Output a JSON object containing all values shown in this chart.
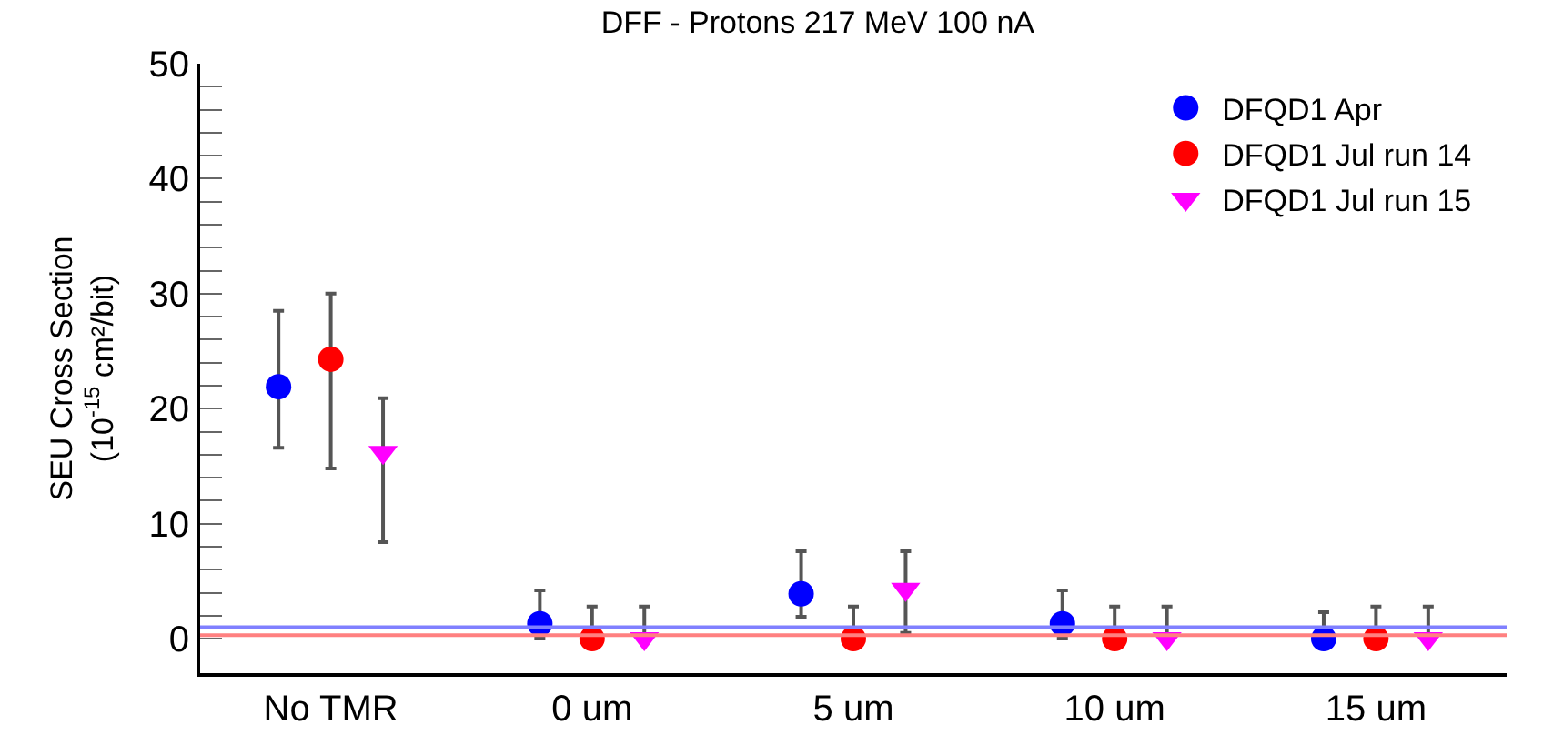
{
  "chart_data": {
    "type": "scatter",
    "title": "DFF - Protons 217 MeV 100 nA",
    "ylabel": "SEU Cross Section\n(10$^{-15}$ cm²/bit)",
    "categories": [
      "No TMR",
      "0 um",
      "5 um",
      "10 um",
      "15 um"
    ],
    "series": [
      {
        "name": "DFQD1 Apr",
        "color": "#0000ff",
        "marker": "circle",
        "values": [
          21.9,
          1.3,
          3.9,
          1.3,
          0
        ],
        "errors": [
          [
            16.6,
            28.5
          ],
          [
            0,
            4.2
          ],
          [
            1.9,
            7.6
          ],
          [
            0,
            4.2
          ],
          [
            0,
            2.3
          ]
        ]
      },
      {
        "name": "DFQD1 Jul run 14",
        "color": "#ff0000",
        "marker": "circle",
        "values": [
          24.3,
          0,
          0,
          0,
          0
        ],
        "errors": [
          [
            14.8,
            30.0
          ],
          [
            0,
            2.8
          ],
          [
            0,
            2.8
          ],
          [
            0,
            2.8
          ],
          [
            0,
            2.8
          ]
        ]
      },
      {
        "name": "DFQD1 Jul run 15",
        "color": "#ff00ff",
        "marker": "triangle",
        "values": [
          16.2,
          0,
          4.3,
          0,
          0
        ],
        "errors": [
          [
            8.4,
            20.9
          ],
          [
            0,
            2.8
          ],
          [
            0.5,
            7.6
          ],
          [
            0,
            2.8
          ],
          [
            0,
            2.8
          ]
        ]
      }
    ],
    "ylim": [
      -3,
      50
    ],
    "yticks": [
      0,
      {
        "value": 2,
        "label": null
      },
      {
        "value": 4,
        "label": null
      },
      {
        "value": 6,
        "label": null
      },
      {
        "value": 8,
        "label": null
      },
      10,
      {
        "value": 12,
        "label": null
      },
      {
        "value": 14,
        "label": null
      },
      {
        "value": 16,
        "label": null
      },
      {
        "value": 18,
        "label": null
      },
      20,
      {
        "value": 22,
        "label": null
      },
      {
        "value": 24,
        "label": null
      },
      {
        "value": 26,
        "label": null
      },
      {
        "value": 28,
        "label": null
      },
      30,
      {
        "value": 32,
        "label": null
      },
      {
        "value": 34,
        "label": null
      },
      {
        "value": 36,
        "label": null
      },
      {
        "value": 38,
        "label": null
      },
      40,
      {
        "value": 42,
        "label": null
      },
      {
        "value": 44,
        "label": null
      },
      {
        "value": 46,
        "label": null
      },
      {
        "value": 48,
        "label": null
      },
      50
    ],
    "ref_lines": [
      {
        "axis": "y",
        "value": 1.0,
        "color": "#8080ff"
      },
      {
        "axis": "y",
        "value": 0.3,
        "color": "#ff8080"
      }
    ],
    "legend": "top right"
  }
}
